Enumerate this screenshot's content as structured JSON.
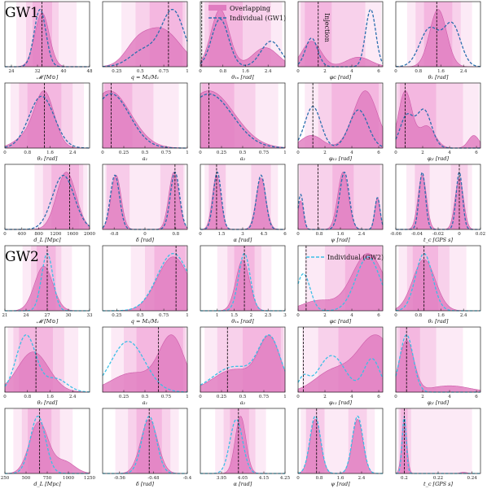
{
  "figure": {
    "group_labels": [
      "GW1",
      "GW2"
    ],
    "legend_gw1": {
      "overlap": "Overlapping",
      "individual": "Individual (GW1)"
    },
    "legend_gw2": {
      "individual": "Individual (GW2)"
    },
    "annotation": "Injection"
  },
  "colors": {
    "fill": "#e07cc0",
    "fill_edge": "#cc5aa8",
    "band": "#e85bb8",
    "gw1_line": "#2a6fae",
    "gw2_line": "#3bbfe6",
    "truth": "#000000"
  },
  "chart_data": [
    {
      "type": "area",
      "xlabel": "𝓜 [M⊙]",
      "xlim": [
        22,
        48
      ],
      "ticks": [
        24,
        32,
        40,
        48
      ],
      "truth": 33.4,
      "ov": [
        [
          0.8,
          33.4,
          2.2
        ]
      ],
      "ind": [
        [
          0.85,
          32.8,
          1.8
        ]
      ],
      "bands": [
        [
          30.5,
          36.5
        ],
        [
          28.5,
          38.5
        ],
        [
          25.5,
          44
        ]
      ]
    },
    {
      "type": "area",
      "xlabel": "q = M₂/M₁",
      "xlim": [
        0.1,
        1.0
      ],
      "ticks": [
        0.25,
        0.5,
        0.75,
        1.0
      ],
      "truth": 0.8,
      "ov": [
        [
          0.55,
          0.72,
          0.2
        ],
        [
          0.2,
          0.45,
          0.12
        ]
      ],
      "ind": [
        [
          0.8,
          0.85,
          0.12
        ],
        [
          0.25,
          0.55,
          0.15
        ]
      ],
      "bands": [
        [
          0.6,
          0.95
        ],
        [
          0.45,
          0.98
        ],
        [
          0.3,
          1.0
        ]
      ]
    },
    {
      "type": "area",
      "xlabel": "θ₁ₙ [rad]",
      "xlim": [
        0,
        3.0
      ],
      "ticks": [
        0,
        0.8,
        1.6,
        2.4
      ],
      "truth": 0.05,
      "ov": [
        [
          0.9,
          0.7,
          0.32
        ],
        [
          0.3,
          2.3,
          0.45
        ]
      ],
      "ind": [
        [
          0.75,
          0.7,
          0.3
        ],
        [
          0.4,
          2.5,
          0.35
        ]
      ],
      "bands": [
        [
          0.3,
          1.5
        ],
        [
          0.15,
          2.5
        ],
        [
          0.05,
          2.9
        ]
      ]
    },
    {
      "type": "area",
      "xlabel": "φc [rad]",
      "xlim": [
        0,
        6.3
      ],
      "ticks": [
        0,
        2,
        4,
        6
      ],
      "truth": 1.5,
      "ov": [
        [
          0.4,
          1.0,
          0.7
        ],
        [
          0.15,
          4.5,
          0.9
        ]
      ],
      "ind": [
        [
          0.45,
          1.0,
          0.45
        ],
        [
          0.9,
          5.4,
          0.38
        ]
      ],
      "bands": [
        [
          0.5,
          2.5
        ],
        [
          0.2,
          5
        ],
        [
          0,
          6.2
        ]
      ]
    },
    {
      "type": "area",
      "xlabel": "θ₁ [rad]",
      "xlim": [
        0,
        3.0
      ],
      "ticks": [
        0,
        0.8,
        1.6,
        2.4
      ],
      "truth": 1.45,
      "ov": [
        [
          0.9,
          1.5,
          0.3
        ]
      ],
      "ind": [
        [
          0.6,
          1.2,
          0.35
        ],
        [
          0.65,
          2.0,
          0.3
        ]
      ],
      "bands": [
        [
          1.0,
          2.0
        ],
        [
          0.7,
          2.3
        ],
        [
          0.4,
          2.7
        ]
      ]
    },
    {
      "type": "area",
      "xlabel": "θ₂ [rad]",
      "xlim": [
        0,
        3.0
      ],
      "ticks": [
        0,
        0.8,
        1.6,
        2.4
      ],
      "truth": 1.4,
      "ov": [
        [
          0.85,
          1.4,
          0.35
        ],
        [
          0.15,
          0.7,
          0.4
        ]
      ],
      "ind": [
        [
          0.8,
          1.3,
          0.45
        ]
      ],
      "bands": [
        [
          0.8,
          2.0
        ],
        [
          0.5,
          2.4
        ],
        [
          0.2,
          2.8
        ]
      ]
    },
    {
      "type": "area",
      "xlabel": "a₁",
      "xlim": [
        0,
        1.0
      ],
      "ticks": [
        0,
        0.25,
        0.5,
        0.75,
        1.0
      ],
      "truth": 0.1,
      "ov": [
        [
          0.95,
          0.08,
          0.25
        ]
      ],
      "ind": [
        [
          0.9,
          0.1,
          0.22
        ]
      ],
      "bands": [
        [
          0.02,
          0.35
        ],
        [
          0.01,
          0.6
        ],
        [
          0,
          0.9
        ]
      ]
    },
    {
      "type": "area",
      "xlabel": "a₂",
      "xlim": [
        0,
        1.0
      ],
      "ticks": [
        0,
        0.25,
        0.5,
        0.75,
        1.0
      ],
      "truth": 0.1,
      "ov": [
        [
          0.9,
          0.1,
          0.3
        ]
      ],
      "ind": [
        [
          0.85,
          0.1,
          0.28
        ]
      ],
      "bands": [
        [
          0.02,
          0.4
        ],
        [
          0.01,
          0.65
        ],
        [
          0,
          0.92
        ]
      ]
    },
    {
      "type": "area",
      "xlabel": "φ₁₂ [rad]",
      "xlim": [
        0,
        6.3
      ],
      "ticks": [
        0,
        2,
        4,
        6
      ],
      "truth": 1.1,
      "ov": [
        [
          0.2,
          1.0,
          0.8
        ],
        [
          0.9,
          5.0,
          0.9
        ]
      ],
      "ind": [
        [
          0.65,
          1.1,
          0.6
        ],
        [
          0.6,
          4.5,
          0.7
        ]
      ],
      "bands": [
        [
          2.5,
          6.0
        ],
        [
          1.5,
          6.2
        ],
        [
          0.5,
          6.3
        ]
      ]
    },
    {
      "type": "area",
      "xlabel": "φⱼₗ [rad]",
      "xlim": [
        0,
        6.3
      ],
      "ticks": [
        0,
        2,
        4,
        6
      ],
      "truth": 0.7,
      "ov": [
        [
          0.9,
          0.7,
          0.5
        ],
        [
          0.35,
          2.3,
          0.6
        ],
        [
          0.2,
          5.8,
          0.4
        ]
      ],
      "ind": [
        [
          0.5,
          0.8,
          0.5
        ],
        [
          0.6,
          2.1,
          0.55
        ]
      ],
      "bands": [
        [
          0.3,
          3.0
        ],
        [
          0.1,
          5.0
        ],
        [
          0,
          6.2
        ]
      ]
    },
    {
      "type": "area",
      "xlabel": "d_L [Mpc]",
      "xlim": [
        0,
        2000
      ],
      "ticks": [
        0,
        400,
        800,
        1200,
        1600,
        2000
      ],
      "truth": 1530,
      "ov": [
        [
          0.9,
          1450,
          230
        ]
      ],
      "ind": [
        [
          0.85,
          1380,
          260
        ]
      ],
      "bands": [
        [
          1100,
          1750
        ],
        [
          900,
          1850
        ],
        [
          700,
          1950
        ]
      ]
    },
    {
      "type": "area",
      "xlabel": "δ [rad]",
      "xlim": [
        -1.1,
        1.1
      ],
      "ticks": [
        -0.8,
        0,
        0.8
      ],
      "truth": 0.78,
      "ov": [
        [
          0.95,
          0.75,
          0.13
        ],
        [
          0.9,
          -0.75,
          0.13
        ]
      ],
      "ind": [
        [
          0.95,
          0.78,
          0.12
        ],
        [
          0.9,
          -0.78,
          0.12
        ]
      ],
      "bands": [
        [
          -1.0,
          -0.4
        ],
        [
          0.4,
          1.0
        ],
        [
          -1.05,
          1.05
        ]
      ]
    },
    {
      "type": "area",
      "xlabel": "α [rad]",
      "xlim": [
        0,
        6.0
      ],
      "ticks": [
        0,
        1.5,
        3.0,
        4.5,
        6.0
      ],
      "truth": 1.15,
      "ov": [
        [
          0.9,
          1.15,
          0.3
        ],
        [
          0.85,
          4.3,
          0.35
        ]
      ],
      "ind": [
        [
          0.95,
          1.2,
          0.28
        ],
        [
          0.9,
          4.3,
          0.32
        ]
      ],
      "bands": [
        [
          0.6,
          1.8
        ],
        [
          3.6,
          5.0
        ],
        [
          0.3,
          5.5
        ]
      ]
    },
    {
      "type": "area",
      "xlabel": "ψ [rad]",
      "xlim": [
        0,
        3.2
      ],
      "ticks": [
        0,
        0.8,
        1.6,
        2.4
      ],
      "truth": 0.75,
      "ov": [
        [
          0.45,
          0.1,
          0.1
        ],
        [
          0.9,
          1.7,
          0.2
        ],
        [
          0.5,
          3.0,
          0.1
        ]
      ],
      "ind": [
        [
          0.55,
          0.1,
          0.1
        ],
        [
          0.9,
          1.75,
          0.18
        ],
        [
          0.5,
          3.0,
          0.1
        ]
      ],
      "bands": [
        [
          1.3,
          2.1
        ],
        [
          0.05,
          3.1
        ],
        [
          0,
          3.2
        ]
      ]
    },
    {
      "type": "area",
      "xlabel": "t_c [GPS s]",
      "xlim": [
        -0.06,
        0.02
      ],
      "ticks": [
        -0.06,
        -0.04,
        -0.02,
        0.0,
        0.02
      ],
      "truth": 0.0,
      "ov": [
        [
          0.9,
          -0.035,
          0.004
        ],
        [
          0.85,
          0.0,
          0.004
        ]
      ],
      "ind": [
        [
          0.95,
          -0.035,
          0.003
        ],
        [
          0.95,
          0.0,
          0.003
        ]
      ],
      "bands": [
        [
          -0.042,
          -0.028
        ],
        [
          -0.008,
          0.008
        ],
        [
          -0.05,
          0.012
        ]
      ]
    },
    {
      "type": "area",
      "xlabel": "𝓜 [M⊙]",
      "xlim": [
        21,
        33
      ],
      "ticks": [
        21,
        24,
        27,
        30,
        33
      ],
      "truth": 27,
      "ov": [
        [
          0.7,
          26.5,
          1.3
        ]
      ],
      "ind": [
        [
          0.9,
          27,
          0.8
        ]
      ],
      "bands": [
        [
          25.5,
          28.2
        ],
        [
          24.7,
          29
        ],
        [
          23.5,
          30.5
        ]
      ]
    },
    {
      "type": "area",
      "xlabel": "q = M₂/M₁",
      "xlim": [
        0.1,
        1.0
      ],
      "ticks": [
        0.25,
        0.5,
        0.75,
        1.0
      ],
      "truth": 0.88,
      "ov": [
        [
          0.8,
          0.85,
          0.17
        ]
      ],
      "ind": [
        [
          0.85,
          0.85,
          0.17
        ]
      ],
      "bands": [
        [
          0.65,
          0.98
        ],
        [
          0.55,
          1.0
        ],
        [
          0.4,
          1.0
        ]
      ]
    },
    {
      "type": "area",
      "xlabel": "θ₁ₙ [rad]",
      "xlim": [
        0.5,
        3.0
      ],
      "ticks": [
        1.0,
        1.5,
        2.0,
        2.5,
        3.0
      ],
      "truth": 1.8,
      "ov": [
        [
          0.75,
          1.75,
          0.2
        ]
      ],
      "ind": [
        [
          0.85,
          1.8,
          0.17
        ]
      ],
      "bands": [
        [
          1.5,
          2.1
        ],
        [
          1.3,
          2.3
        ],
        [
          1.0,
          2.6
        ]
      ]
    },
    {
      "type": "area",
      "xlabel": "φc [rad]",
      "xlim": [
        0,
        6.3
      ],
      "ticks": [
        0,
        2,
        4,
        6
      ],
      "truth": 0.6,
      "ov": [
        [
          0.85,
          5.2,
          1.2
        ],
        [
          0.15,
          1.5,
          1.2
        ]
      ],
      "ind": [
        [
          0.8,
          5.2,
          0.9
        ],
        [
          0.55,
          0.4,
          0.5
        ]
      ],
      "bands": [
        [
          3.5,
          6.2
        ],
        [
          2.0,
          6.3
        ],
        [
          0.5,
          6.3
        ]
      ]
    },
    {
      "type": "area",
      "xlabel": "θ₁ [rad]",
      "xlim": [
        0,
        3.0
      ],
      "ticks": [
        0,
        0.8,
        1.6,
        2.4
      ],
      "truth": 1.0,
      "ov": [
        [
          0.85,
          1.0,
          0.4
        ]
      ],
      "ind": [
        [
          0.95,
          1.0,
          0.3
        ]
      ],
      "bands": [
        [
          0.6,
          1.5
        ],
        [
          0.4,
          1.9
        ],
        [
          0.1,
          2.5
        ]
      ]
    },
    {
      "type": "area",
      "xlabel": "θ₂ [rad]",
      "xlim": [
        0,
        3.0
      ],
      "ticks": [
        0,
        0.8,
        1.6,
        2.4
      ],
      "truth": 1.1,
      "ov": [
        [
          0.6,
          1.0,
          0.55
        ]
      ],
      "ind": [
        [
          0.85,
          0.75,
          0.35
        ],
        [
          0.2,
          1.8,
          0.4
        ]
      ],
      "bands": [
        [
          0.5,
          1.7
        ],
        [
          0.3,
          2.1
        ],
        [
          0.1,
          2.6
        ]
      ]
    },
    {
      "type": "area",
      "xlabel": "a₁",
      "xlim": [
        0,
        1.0
      ],
      "ticks": [
        0.25,
        0.5,
        0.75,
        1.0
      ],
      "truth": 0.66,
      "ov": [
        [
          0.85,
          0.82,
          0.15
        ],
        [
          0.3,
          0.35,
          0.25
        ]
      ],
      "ind": [
        [
          0.8,
          0.3,
          0.2
        ]
      ],
      "bands": [
        [
          0.4,
          0.95
        ],
        [
          0.25,
          0.98
        ],
        [
          0.1,
          1.0
        ]
      ]
    },
    {
      "type": "area",
      "xlabel": "a₂",
      "xlim": [
        0,
        1.0
      ],
      "ticks": [
        0,
        0.25,
        0.5,
        0.75,
        1.0
      ],
      "truth": 0.32,
      "ov": [
        [
          0.9,
          0.82,
          0.13
        ],
        [
          0.4,
          0.4,
          0.25
        ]
      ],
      "ind": [
        [
          0.9,
          0.82,
          0.13
        ],
        [
          0.45,
          0.4,
          0.25
        ]
      ],
      "bands": [
        [
          0.5,
          0.95
        ],
        [
          0.2,
          0.98
        ],
        [
          0.05,
          1.0
        ]
      ]
    },
    {
      "type": "area",
      "xlabel": "φ₁₂ [rad]",
      "xlim": [
        0,
        6.3
      ],
      "ticks": [
        0,
        2,
        4,
        6
      ],
      "truth": 0.4,
      "ov": [
        [
          0.85,
          5.8,
          1.4
        ],
        [
          0.3,
          2.5,
          1.3
        ]
      ],
      "ind": [
        [
          0.55,
          2.5,
          1.0
        ],
        [
          0.5,
          5.5,
          0.6
        ],
        [
          0.2,
          0.4,
          0.4
        ]
      ],
      "bands": [
        [
          3.0,
          6.2
        ],
        [
          1.5,
          6.3
        ],
        [
          0.3,
          6.3
        ]
      ]
    },
    {
      "type": "area",
      "xlabel": "φⱼₗ [rad]",
      "xlim": [
        0,
        6.3
      ],
      "ticks": [
        0,
        2,
        4,
        6
      ],
      "truth": 0.8,
      "ov": [
        [
          0.8,
          0.8,
          0.55
        ],
        [
          0.1,
          4,
          1.5
        ]
      ],
      "ind": [
        [
          0.9,
          0.8,
          0.5
        ]
      ],
      "bands": [
        [
          0.3,
          1.8
        ],
        [
          0.1,
          3.0
        ],
        [
          0,
          5
        ]
      ]
    },
    {
      "type": "area",
      "xlabel": "d_L [Mpc]",
      "xlim": [
        250,
        1250
      ],
      "ticks": [
        250,
        500,
        750,
        1000,
        1250
      ],
      "truth": 660,
      "ov": [
        [
          0.85,
          650,
          110
        ],
        [
          0.2,
          950,
          120
        ]
      ],
      "ind": [
        [
          0.95,
          640,
          90
        ]
      ],
      "bands": [
        [
          520,
          800
        ],
        [
          450,
          900
        ],
        [
          350,
          1050
        ]
      ]
    },
    {
      "type": "area",
      "xlabel": "δ [rad]",
      "xlim": [
        -0.6,
        -0.4
      ],
      "ticks": [
        -0.56,
        -0.48,
        -0.4
      ],
      "truth": -0.49,
      "ov": [
        [
          0.85,
          -0.49,
          0.02
        ]
      ],
      "ind": [
        [
          0.9,
          -0.49,
          0.017
        ]
      ],
      "bands": [
        [
          -0.52,
          -0.46
        ],
        [
          -0.54,
          -0.44
        ],
        [
          -0.57,
          -0.42
        ]
      ]
    },
    {
      "type": "area",
      "xlabel": "α [rad]",
      "xlim": [
        3.85,
        4.25
      ],
      "ticks": [
        3.95,
        4.05,
        4.15,
        4.25
      ],
      "truth": 4.03,
      "ov": [
        [
          0.9,
          4.04,
          0.025
        ]
      ],
      "ind": [
        [
          0.85,
          4.02,
          0.03
        ]
      ],
      "bands": [
        [
          3.99,
          4.08
        ],
        [
          3.96,
          4.11
        ],
        [
          3.92,
          4.16
        ]
      ]
    },
    {
      "type": "area",
      "xlabel": "ψ [rad]",
      "xlim": [
        0,
        3.2
      ],
      "ticks": [
        0,
        0.8,
        1.6,
        2.4
      ],
      "truth": 0.7,
      "ov": [
        [
          0.85,
          0.65,
          0.2
        ],
        [
          0.85,
          2.25,
          0.2
        ]
      ],
      "ind": [
        [
          0.9,
          0.65,
          0.2
        ],
        [
          0.9,
          2.25,
          0.2
        ]
      ],
      "bands": [
        [
          0.3,
          1.0
        ],
        [
          1.9,
          2.6
        ],
        [
          0.1,
          2.9
        ]
      ]
    },
    {
      "type": "area",
      "xlabel": "t_c [GPS s]",
      "xlim": [
        0.195,
        0.245
      ],
      "ticks": [
        0.2,
        0.22,
        0.24
      ],
      "truth": 0.2,
      "ov": [
        [
          0.9,
          0.2,
          0.0015
        ],
        [
          0.02,
          0.235,
          0.002
        ]
      ],
      "ind": [
        [
          0.95,
          0.2,
          0.0012
        ]
      ],
      "bands": [
        [
          0.198,
          0.202
        ],
        [
          0.197,
          0.204
        ],
        [
          0.196,
          0.24
        ]
      ]
    }
  ]
}
